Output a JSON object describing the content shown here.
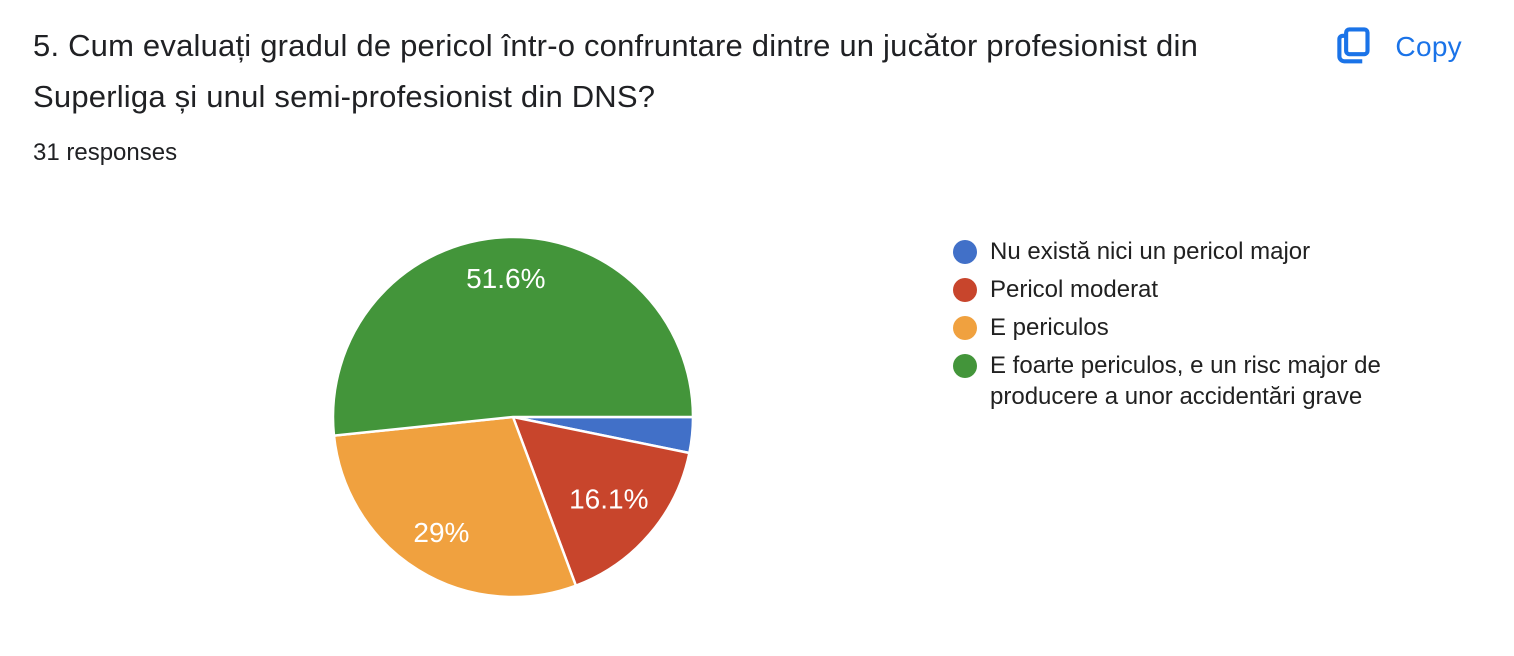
{
  "header": {
    "title_lines": [
      "5. Cum evaluați gradul de pericol într-o confruntare dintre un jucător profesionist din",
      "Superliga și unul semi-profesionist din DNS?"
    ],
    "title_full": "5. Cum evaluați gradul de pericol într-o confruntare dintre un jucător profesionist din Superliga și unul semi-profesionist din DNS?",
    "response_count": "31 responses",
    "copy_label": "Copy"
  },
  "colors": {
    "accent_blue": "#1a73e8",
    "text_dark": "#202124"
  },
  "chart_data": {
    "type": "pie",
    "title": "5. Cum evaluați gradul de pericol într-o confruntare dintre un jucător profesionist din Superliga și unul semi-profesionist din DNS?",
    "responses_label": "31 responses",
    "legend_position": "right",
    "start_angle_deg": 0,
    "direction": "clockwise",
    "slices": [
      {
        "label": "Nu există nici un pericol major",
        "legend_lines": [
          "Nu există nici un pericol major"
        ],
        "value_pct": 3.2,
        "display_label": "",
        "color": "#4170c8",
        "label_r": 0.7
      },
      {
        "label": "Pericol moderat",
        "legend_lines": [
          "Pericol moderat"
        ],
        "value_pct": 16.1,
        "display_label": "16.1%",
        "color": "#c8452c",
        "label_r": 0.7
      },
      {
        "label": "E periculos",
        "legend_lines": [
          "E periculos"
        ],
        "value_pct": 29,
        "display_label": "29%",
        "color": "#f0a13f",
        "label_r": 0.755
      },
      {
        "label": "E foarte periculos, e un risc major de producere a unor accidentări grave",
        "legend_lines": [
          "E foarte periculos, e un risc major de",
          "producere a unor accidentări grave"
        ],
        "value_pct": 51.6,
        "display_label": "51.6%",
        "color": "#43953a",
        "label_r": 0.77
      }
    ]
  }
}
